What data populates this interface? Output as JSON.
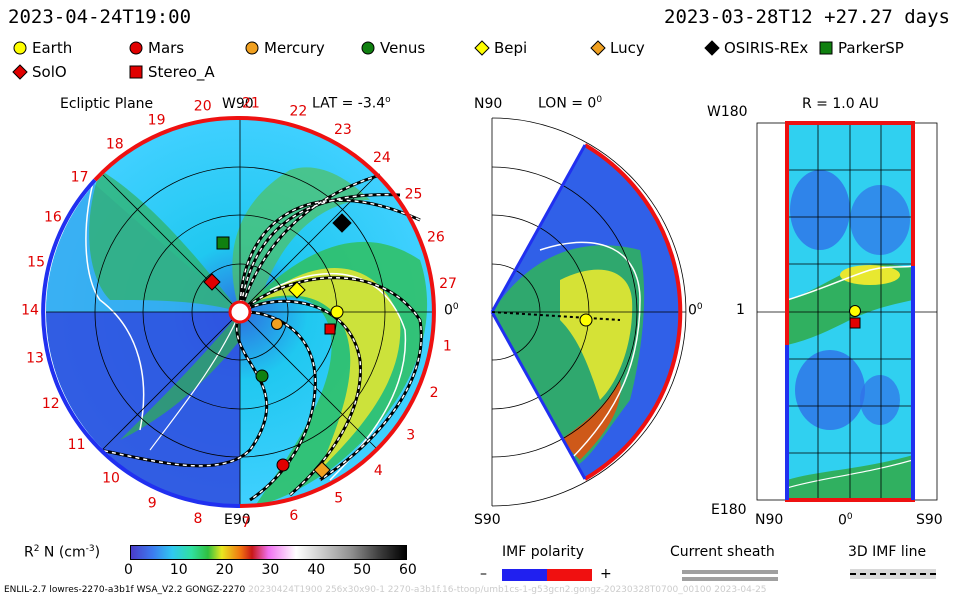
{
  "header": {
    "left_date": "2023-04-24T19:00",
    "right_date": "2023-03-28T12 +27.27 days"
  },
  "legend": [
    {
      "name": "Earth",
      "shape": "circle",
      "color": "#ffff00"
    },
    {
      "name": "Mars",
      "shape": "circle",
      "color": "#e00000"
    },
    {
      "name": "Mercury",
      "shape": "circle",
      "color": "#f0a020"
    },
    {
      "name": "Venus",
      "shape": "circle",
      "color": "#108010"
    },
    {
      "name": "Bepi",
      "shape": "diamond",
      "color": "#ffff00"
    },
    {
      "name": "Lucy",
      "shape": "diamond",
      "color": "#f0a020"
    },
    {
      "name": "OSIRIS-REx",
      "shape": "diamond",
      "color": "#000000"
    },
    {
      "name": "ParkerSP",
      "shape": "square",
      "color": "#108010"
    },
    {
      "name": "SolO",
      "shape": "diamond",
      "color": "#e00000"
    },
    {
      "name": "Stereo_A",
      "shape": "square",
      "color": "#e00000"
    }
  ],
  "ecliptic": {
    "title": "Ecliptic Plane",
    "lat_label": "LAT = -3.4",
    "w90": "W90",
    "e90": "E90",
    "zero": "0",
    "carrington_days": [
      "1",
      "2",
      "3",
      "4",
      "5",
      "6",
      "7",
      "8",
      "9",
      "10",
      "11",
      "12",
      "13",
      "14",
      "15",
      "16",
      "17",
      "18",
      "19",
      "20",
      "21",
      "22",
      "23",
      "24",
      "25",
      "26",
      "27"
    ]
  },
  "meridional": {
    "n90": "N90",
    "s90": "S90",
    "lon_label": "LON = 0",
    "zero": "0"
  },
  "radial": {
    "r_label": "R = 1.0 AU",
    "w180": "W180",
    "e180": "E180",
    "n90": "N90",
    "s90": "S90",
    "zero": "0",
    "one": "1"
  },
  "colorbar": {
    "label": "R",
    "label_sup": "2",
    "label_rest": " N (cm",
    "label_exp": "-3",
    "label_end": ")",
    "ticks": [
      "0",
      "10",
      "20",
      "30",
      "40",
      "50",
      "60"
    ]
  },
  "imf_polarity": {
    "title": "IMF polarity",
    "minus": "–",
    "plus": "+"
  },
  "current_sheath": {
    "title": "Current sheath"
  },
  "imf_line": {
    "title": "3D IMF line"
  },
  "footer": {
    "left": "ENLIL-2.7 lowres-2270-a3b1f WSA_V2.2 GONGZ-2270",
    "middle": "20230424T1900 256x30x90-1 2270-a3b1f.16-ttoop/umb1cs-1-g53gcn2.gongz-20230328T0700_00100",
    "right": "2023-04-25"
  }
}
